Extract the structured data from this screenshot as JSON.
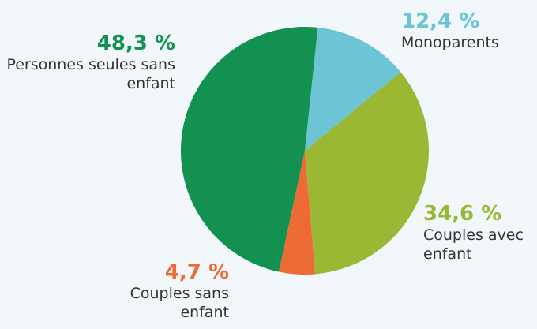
{
  "chart_data": {
    "type": "pie",
    "categories": [
      "Monoparents",
      "Couples avec enfant",
      "Couples sans enfant",
      "Personnes seules sans enfant"
    ],
    "values": [
      12.4,
      34.6,
      4.7,
      48.3
    ],
    "value_labels": [
      "12,4 %",
      "34,6 %",
      "4,7 %",
      "48,3 %"
    ],
    "colors": [
      "#6cc4d4",
      "#9ab833",
      "#ee6b35",
      "#129150"
    ]
  }
}
